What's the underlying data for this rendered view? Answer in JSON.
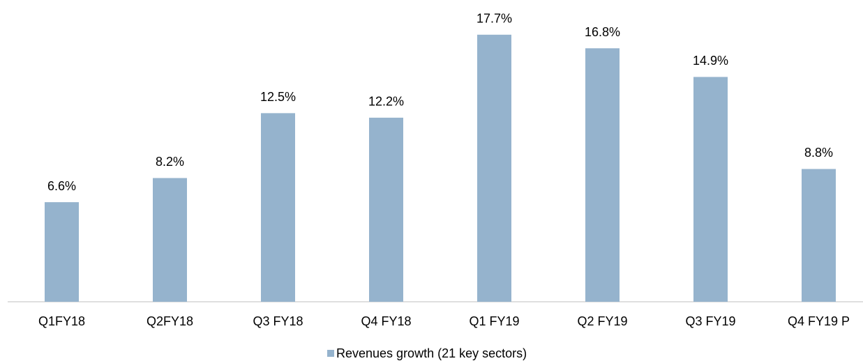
{
  "chart_data": {
    "type": "bar",
    "categories": [
      "Q1FY18",
      "Q2FY18",
      "Q3 FY18",
      "Q4 FY18",
      "Q1 FY19",
      "Q2 FY19",
      "Q3 FY19",
      "Q4 FY19 P"
    ],
    "series": [
      {
        "name": "Revenues growth (21 key sectors)",
        "color": "#95b3cd",
        "values": [
          6.6,
          8.2,
          12.5,
          12.2,
          17.7,
          16.8,
          14.9,
          8.8
        ],
        "value_labels": [
          "6.6%",
          "8.2%",
          "12.5%",
          "12.2%",
          "17.7%",
          "16.8%",
          "14.9%",
          "8.8%"
        ]
      }
    ],
    "ylim": [
      0,
      20
    ],
    "legend": "bottom"
  }
}
